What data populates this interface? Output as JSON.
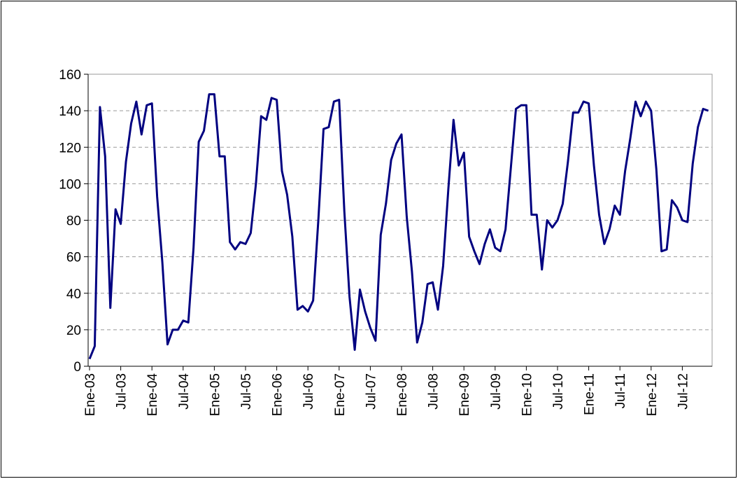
{
  "chart_data": {
    "type": "line",
    "categories": [
      "Ene-03",
      null,
      null,
      null,
      null,
      null,
      "Jul-03",
      null,
      null,
      null,
      null,
      null,
      "Ene-04",
      null,
      null,
      null,
      null,
      null,
      "Jul-04",
      null,
      null,
      null,
      null,
      null,
      "Ene-05",
      null,
      null,
      null,
      null,
      null,
      "Jul-05",
      null,
      null,
      null,
      null,
      null,
      "Ene-06",
      null,
      null,
      null,
      null,
      null,
      "Jul-06",
      null,
      null,
      null,
      null,
      null,
      "Ene-07",
      null,
      null,
      null,
      null,
      null,
      "Jul-07",
      null,
      null,
      null,
      null,
      null,
      "Ene-08",
      null,
      null,
      null,
      null,
      null,
      "Jul-08",
      null,
      null,
      null,
      null,
      null,
      "Ene-09",
      null,
      null,
      null,
      null,
      null,
      "Jul-09",
      null,
      null,
      null,
      null,
      null,
      "Ene-10",
      null,
      null,
      null,
      null,
      null,
      "Jul-10",
      null,
      null,
      null,
      null,
      null,
      "Ene-11",
      null,
      null,
      null,
      null,
      null,
      "Jul-11",
      null,
      null,
      null,
      null,
      null,
      "Ene-12",
      null,
      null,
      null,
      null,
      null,
      "Jul-12",
      null,
      null,
      null,
      null,
      null
    ],
    "values": [
      4,
      11,
      142,
      115,
      32,
      86,
      78,
      112,
      133,
      145,
      127,
      143,
      144,
      93,
      57,
      12,
      20,
      20,
      25,
      24,
      65,
      123,
      129,
      149,
      149,
      115,
      115,
      68,
      64,
      68,
      67,
      73,
      100,
      137,
      135,
      147,
      146,
      107,
      94,
      71,
      31,
      33,
      30,
      36,
      80,
      130,
      131,
      145,
      146,
      85,
      38,
      9,
      42,
      30,
      21,
      14,
      72,
      89,
      113,
      122,
      127,
      82,
      52,
      13,
      24,
      45,
      46,
      31,
      55,
      97,
      135,
      110,
      117,
      71,
      63,
      56,
      67,
      75,
      65,
      63,
      75,
      108,
      141,
      143,
      143,
      83,
      83,
      53,
      80,
      76,
      80,
      89,
      112,
      139,
      139,
      145,
      144,
      110,
      83,
      67,
      75,
      88,
      83,
      107,
      125,
      145,
      137,
      145,
      140,
      108,
      63,
      64,
      91,
      87,
      80,
      79,
      111,
      131,
      141,
      140
    ],
    "color": "#000080",
    "ylim": [
      0,
      160
    ],
    "yticks": [
      0,
      20,
      40,
      60,
      80,
      100,
      120,
      140,
      160
    ],
    "grid": true
  }
}
